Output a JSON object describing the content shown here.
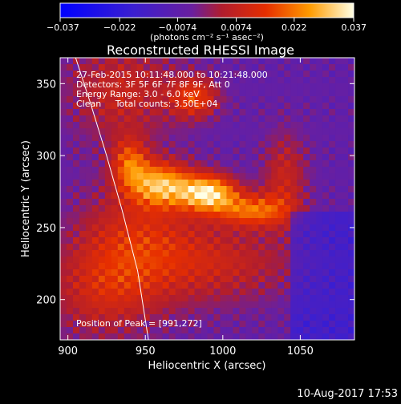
{
  "chart_data": {
    "type": "heatmap",
    "title": "Reconstructed RHESSI Image",
    "xlabel": "Heliocentric X (arcsec)",
    "ylabel": "Heliocentric Y (arcsec)",
    "xlim": [
      895,
      1085
    ],
    "ylim": [
      172,
      368
    ],
    "x_ticks": [
      900,
      950,
      1000,
      1050
    ],
    "y_ticks": [
      200,
      250,
      300,
      350
    ],
    "colorbar": {
      "ticks": [
        -0.037,
        -0.022,
        -0.0074,
        0.0074,
        0.022,
        0.037
      ],
      "tick_labels": [
        "−0.037",
        "−0.022",
        "−0.0074",
        "0.0074",
        "0.022",
        "0.037"
      ],
      "unit_label": "(photons cm⁻² s⁻¹ asec⁻²)",
      "range": [
        -0.037,
        0.037
      ]
    },
    "annotations": [
      "27-Feb-2015 10:11:48.000 to 10:21:48.000",
      "Detectors: 3F 5F 6F 7F 8F 9F, Att 0",
      "Energy Range: 3.0 - 6.0 keV",
      "Clean     Total counts: 3.50E+04"
    ],
    "peak_label": "Position of Peak = [991,272]",
    "peak": [
      991,
      272
    ],
    "components": [
      {
        "x": 991,
        "y": 274,
        "sx": 13,
        "sy": 9,
        "amp": 0.037
      },
      {
        "x": 960,
        "y": 280,
        "sx": 14,
        "sy": 11,
        "amp": 0.03
      },
      {
        "x": 940,
        "y": 295,
        "sx": 8,
        "sy": 12,
        "amp": 0.021
      },
      {
        "x": 1020,
        "y": 262,
        "sx": 16,
        "sy": 8,
        "amp": 0.024
      },
      {
        "x": 1040,
        "y": 285,
        "sx": 10,
        "sy": 22,
        "amp": 0.014
      },
      {
        "x": 982,
        "y": 340,
        "sx": 11,
        "sy": 10,
        "amp": 0.02
      },
      {
        "x": 945,
        "y": 240,
        "sx": 28,
        "sy": 30,
        "amp": 0.016
      },
      {
        "x": 1000,
        "y": 225,
        "sx": 35,
        "sy": 20,
        "amp": 0.013
      },
      {
        "x": 935,
        "y": 345,
        "sx": 26,
        "sy": 25,
        "amp": 0.014
      },
      {
        "x": 920,
        "y": 205,
        "sx": 25,
        "sy": 25,
        "amp": 0.012
      }
    ],
    "background": -0.006,
    "limb_curve": {
      "x": [
        905,
        915,
        925,
        935,
        945,
        952
      ],
      "y": [
        368,
        335,
        300,
        262,
        220,
        172
      ]
    }
  },
  "footer": {
    "timestamp": "10-Aug-2017 17:53"
  }
}
